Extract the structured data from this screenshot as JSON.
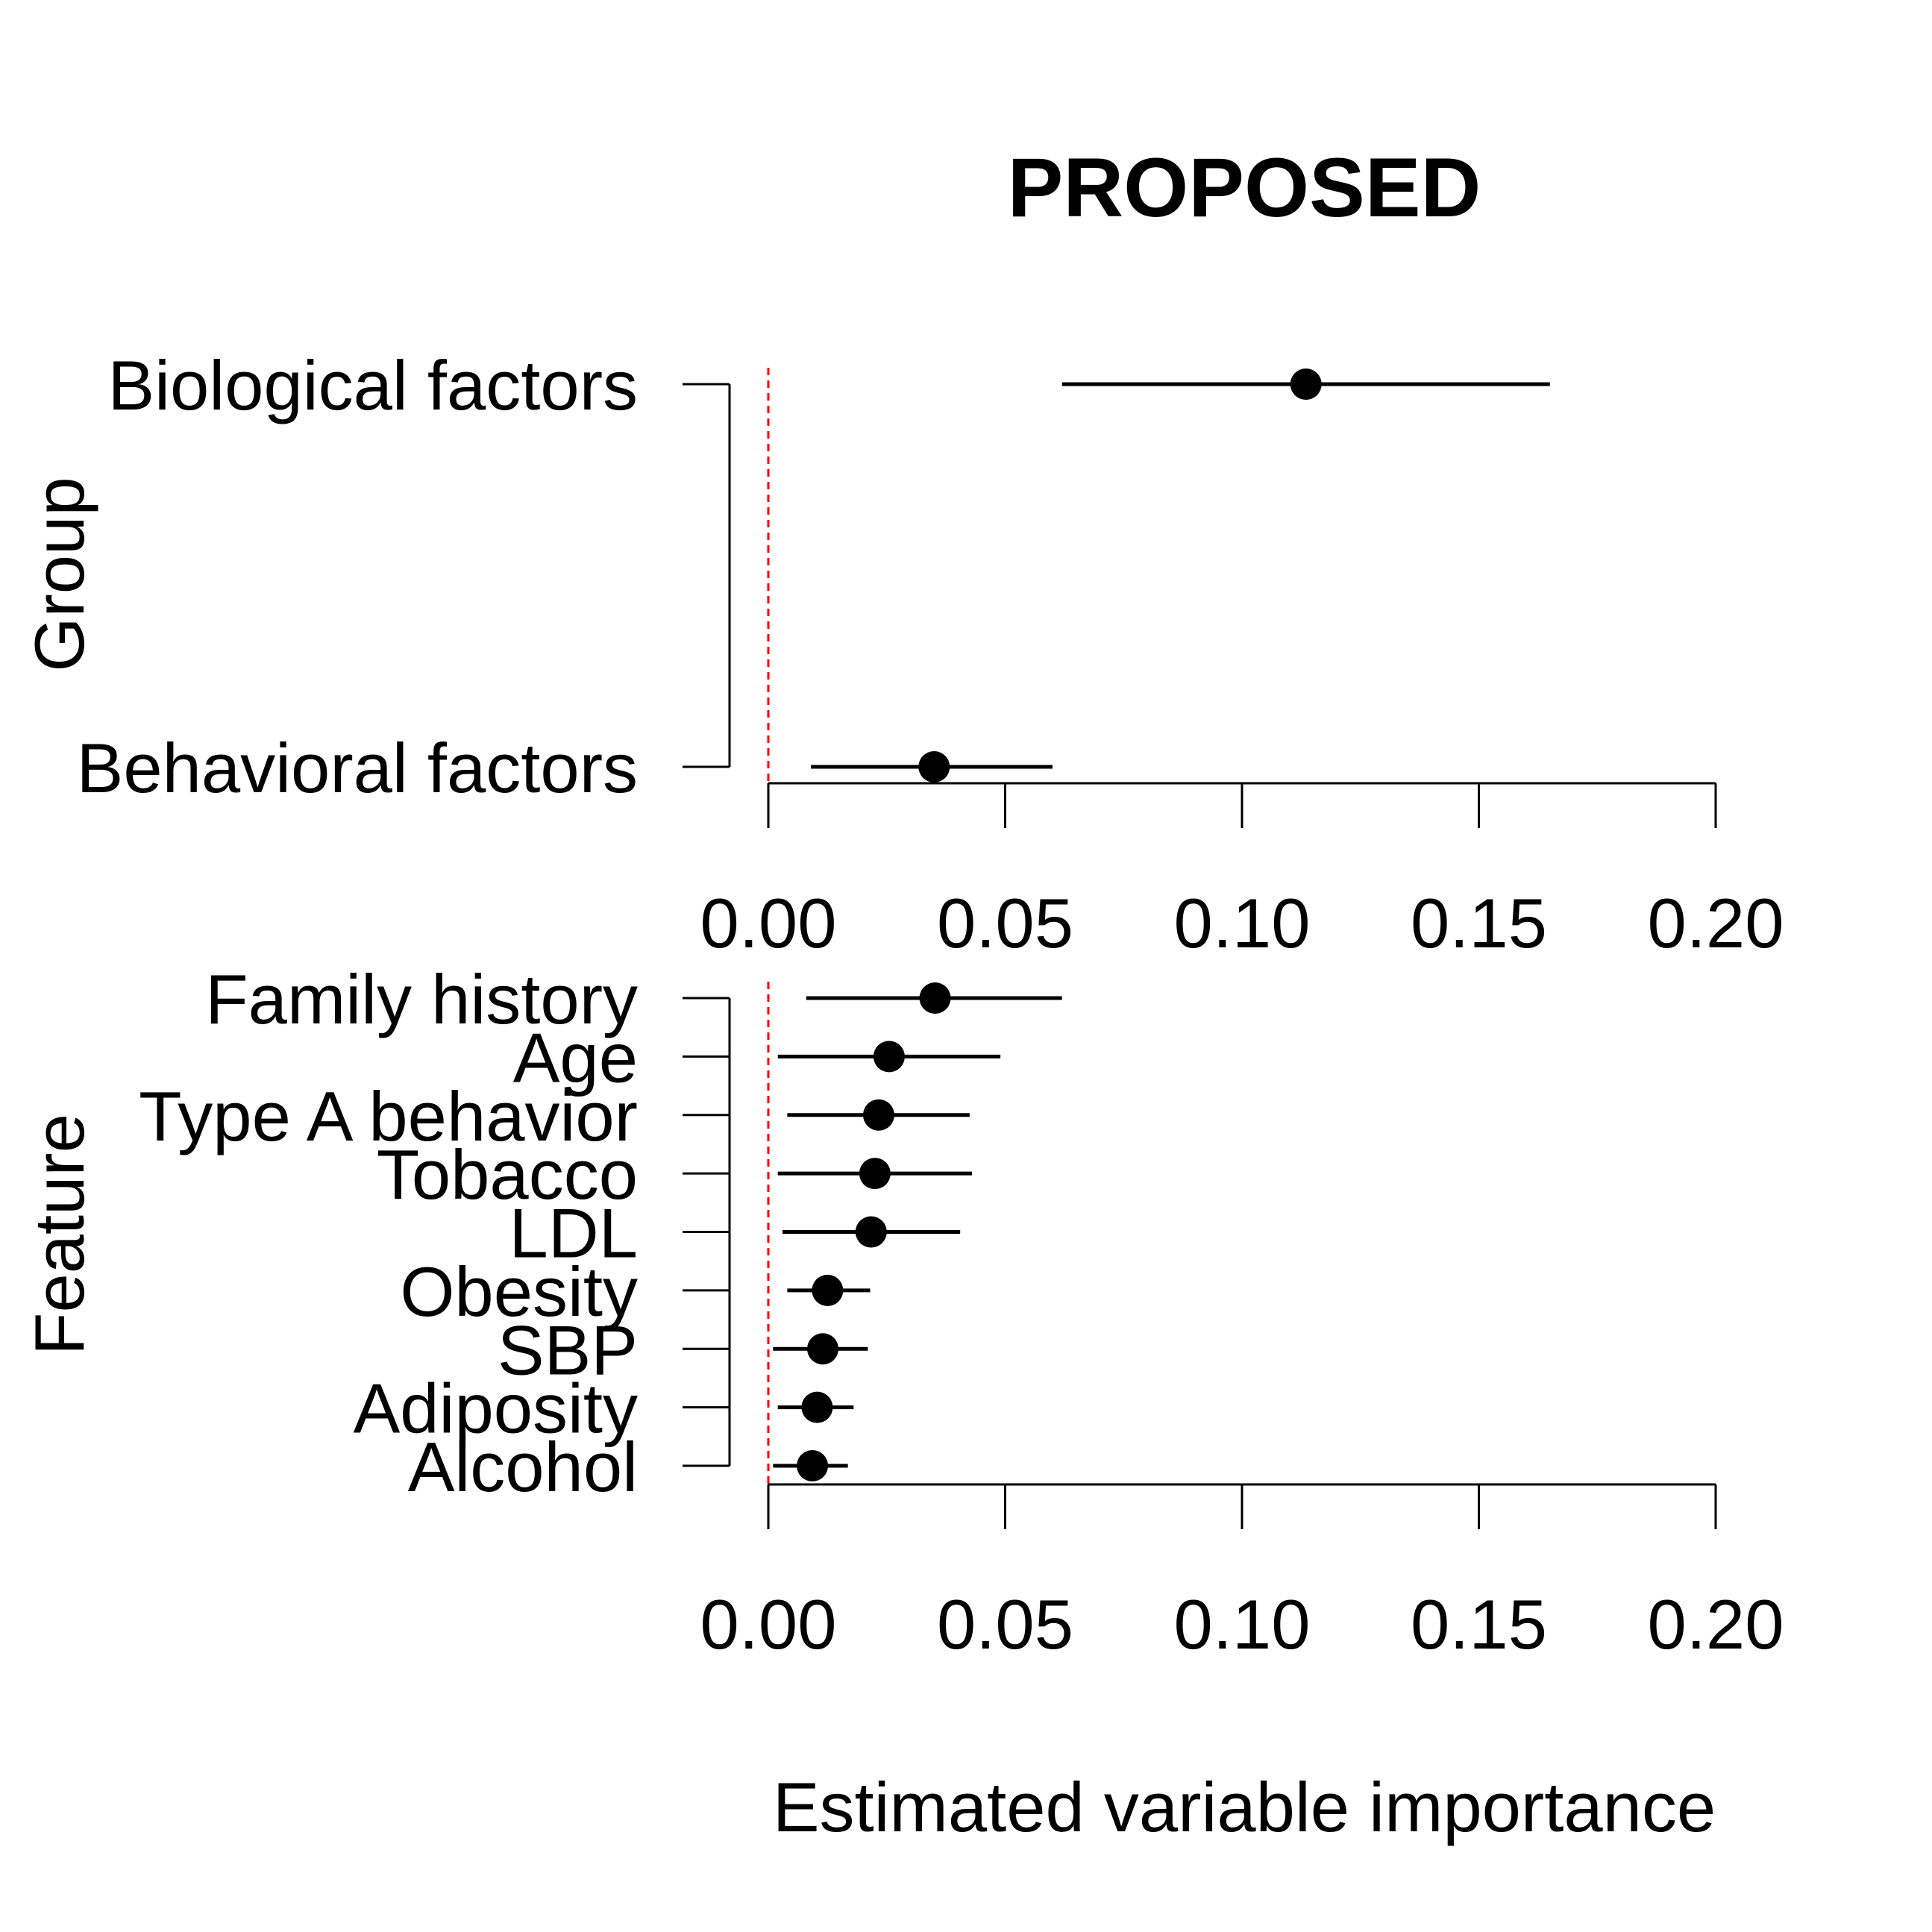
{
  "chart_data": [
    {
      "type": "dot-interval",
      "panel": "group",
      "title": "PROPOSED",
      "ylabel": "Group",
      "xlabel": "",
      "xlim": [
        0,
        0.2
      ],
      "xticks": [
        "0.00",
        "0.05",
        "0.10",
        "0.15",
        "0.20"
      ],
      "categories": [
        "Biological factors",
        "Behavioral factors"
      ],
      "estimate": [
        0.1135,
        0.035
      ],
      "lower": [
        0.062,
        0.009
      ],
      "upper": [
        0.165,
        0.06
      ],
      "reference_line": 0,
      "reference_color": "#ff0000"
    },
    {
      "type": "dot-interval",
      "panel": "feature",
      "title": "",
      "ylabel": "Feature",
      "xlabel": "Estimated variable importance",
      "xlim": [
        0,
        0.2
      ],
      "xticks": [
        "0.00",
        "0.05",
        "0.10",
        "0.15",
        "0.20"
      ],
      "categories": [
        "Family history",
        "Age",
        "Type A behavior",
        "Tobacco",
        "LDL",
        "Obesity",
        "SBP",
        "Adiposity",
        "Alcohol"
      ],
      "estimate": [
        0.0352,
        0.0255,
        0.0233,
        0.0225,
        0.0217,
        0.0125,
        0.0115,
        0.0103,
        0.0093
      ],
      "lower": [
        0.008,
        0.002,
        0.004,
        0.002,
        0.003,
        0.004,
        0.001,
        0.002,
        0.001
      ],
      "upper": [
        0.062,
        0.049,
        0.0425,
        0.043,
        0.0405,
        0.0215,
        0.021,
        0.018,
        0.0168
      ],
      "reference_line": 0,
      "reference_color": "#ff0000"
    }
  ]
}
